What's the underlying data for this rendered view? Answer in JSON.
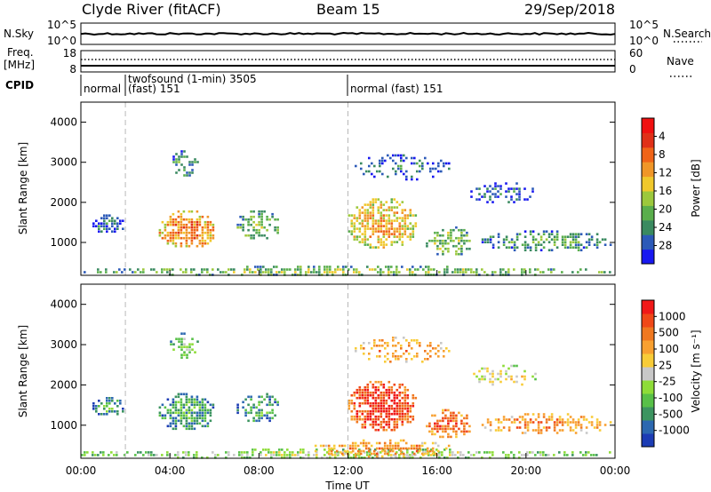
{
  "header": {
    "station": "Clyde River (fitACF)",
    "beam": "Beam 15",
    "date": "29/Sep/2018"
  },
  "nsky_panel": {
    "left_label": "N.Sky",
    "left_ticks": [
      "10^5",
      "10^0"
    ],
    "right_label": "N.Search",
    "right_ticks": [
      "10^5",
      "10^0"
    ]
  },
  "freq_panel": {
    "left_label_line1": "Freq.",
    "left_label_line2": "[MHz]",
    "left_ticks": [
      "18",
      "8"
    ],
    "right_label": "Nave",
    "right_ticks": [
      "60",
      "0"
    ]
  },
  "cpid_panel": {
    "label": "CPID",
    "segments": [
      {
        "start_hour": 0.0,
        "label": "normal"
      },
      {
        "start_hour": 2.0,
        "label": "twofsound (1-min) 3505",
        "label2": "(fast) 151"
      },
      {
        "start_hour": 12.0,
        "label": "normal (fast) 151"
      }
    ]
  },
  "time_axis": {
    "label": "Time UT",
    "ticks": [
      "00:00",
      "04:00",
      "08:00",
      "12:00",
      "16:00",
      "20:00",
      "00:00"
    ],
    "tick_hours": [
      0,
      4,
      8,
      12,
      16,
      20,
      24
    ],
    "range_hours": [
      0,
      24
    ],
    "dashed_markers_hours": [
      2,
      12
    ]
  },
  "power_panel": {
    "ylabel": "Slant Range [km]",
    "yticks": [
      "1000",
      "2000",
      "3000",
      "4000"
    ],
    "ytick_values": [
      1000,
      2000,
      3000,
      4000
    ],
    "ylim": [
      180,
      4500
    ],
    "colorbar": {
      "label": "Power [dB]",
      "ticks": [
        "4",
        "8",
        "12",
        "16",
        "20",
        "24",
        "28"
      ],
      "colors": [
        "#1818f0",
        "#2c5ab8",
        "#3a8a60",
        "#5aae4c",
        "#9cc83c",
        "#f0c82c",
        "#f09628",
        "#f06418",
        "#e03018",
        "#f01010"
      ]
    }
  },
  "velocity_panel": {
    "ylabel": "Slant Range [km]",
    "yticks": [
      "1000",
      "2000",
      "3000",
      "4000"
    ],
    "ytick_values": [
      1000,
      2000,
      3000,
      4000
    ],
    "ylim": [
      180,
      4500
    ],
    "colorbar": {
      "label": "Velocity [m s⁻¹]",
      "ticks": [
        "1000",
        "500",
        "100",
        "25",
        "-25",
        "-100",
        "-500",
        "-1000"
      ],
      "colors": [
        "#1c3cb4",
        "#2c68b0",
        "#3c9460",
        "#58c048",
        "#8edc38",
        "#c8c8c8",
        "#f8cc38",
        "#f8a030",
        "#f07820",
        "#f04818",
        "#f01818"
      ]
    }
  },
  "chart_data": {
    "type": "heatmap",
    "x": "time (hours UT)",
    "y": "slant range (km)",
    "power_blobs": [
      {
        "t0": 0.0,
        "t1": 24.0,
        "r0": 200,
        "r1": 420,
        "level": 3,
        "density": 0.55
      },
      {
        "t0": 0.4,
        "t1": 1.9,
        "r0": 1250,
        "r1": 1700,
        "level": 1,
        "density": 0.7
      },
      {
        "t0": 3.5,
        "t1": 6.0,
        "r0": 900,
        "r1": 1800,
        "level": 6,
        "density": 0.75
      },
      {
        "t0": 4.0,
        "t1": 5.2,
        "r0": 2700,
        "r1": 3300,
        "level": 2,
        "density": 0.45
      },
      {
        "t0": 7.0,
        "t1": 8.9,
        "r0": 1100,
        "r1": 1800,
        "level": 3,
        "density": 0.6
      },
      {
        "t0": 12.0,
        "t1": 15.0,
        "r0": 900,
        "r1": 2100,
        "level": 5,
        "density": 0.7
      },
      {
        "t0": 12.3,
        "t1": 16.5,
        "r0": 2600,
        "r1": 3200,
        "level": 1,
        "density": 0.35
      },
      {
        "t0": 15.5,
        "t1": 17.5,
        "r0": 700,
        "r1": 1400,
        "level": 3,
        "density": 0.55
      },
      {
        "t0": 17.5,
        "t1": 20.5,
        "r0": 2000,
        "r1": 2500,
        "level": 1,
        "density": 0.45
      },
      {
        "t0": 18.0,
        "t1": 23.8,
        "r0": 800,
        "r1": 1300,
        "level": 2,
        "density": 0.5
      }
    ],
    "velocity_blobs": [
      {
        "t0": 0.0,
        "t1": 24.0,
        "r0": 200,
        "r1": 420,
        "level": 4,
        "density": 0.55
      },
      {
        "t0": 10.5,
        "t1": 16.5,
        "r0": 250,
        "r1": 650,
        "level": 7,
        "density": 0.6
      },
      {
        "t0": 0.4,
        "t1": 1.9,
        "r0": 1250,
        "r1": 1700,
        "level": 2,
        "density": 0.7
      },
      {
        "t0": 3.5,
        "t1": 6.0,
        "r0": 900,
        "r1": 1800,
        "level": 2,
        "density": 0.75
      },
      {
        "t0": 4.0,
        "t1": 5.2,
        "r0": 2700,
        "r1": 3300,
        "level": 3,
        "density": 0.45
      },
      {
        "t0": 7.0,
        "t1": 8.9,
        "r0": 1100,
        "r1": 1800,
        "level": 2,
        "density": 0.6
      },
      {
        "t0": 12.0,
        "t1": 15.0,
        "r0": 900,
        "r1": 2100,
        "level": 9,
        "density": 0.75
      },
      {
        "t0": 12.3,
        "t1": 16.5,
        "r0": 2600,
        "r1": 3200,
        "level": 7,
        "density": 0.35
      },
      {
        "t0": 15.5,
        "t1": 17.5,
        "r0": 700,
        "r1": 1400,
        "level": 8,
        "density": 0.55
      },
      {
        "t0": 17.5,
        "t1": 20.5,
        "r0": 2000,
        "r1": 2500,
        "level": 5,
        "density": 0.45
      },
      {
        "t0": 18.0,
        "t1": 23.8,
        "r0": 800,
        "r1": 1300,
        "level": 7,
        "density": 0.5
      }
    ]
  }
}
